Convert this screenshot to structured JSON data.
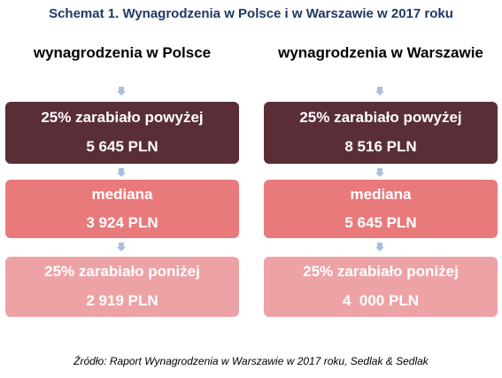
{
  "title": "Schemat 1. Wynagrodzenia w Polsce i w Warszawie w 2017 roku",
  "columns": [
    {
      "header": "wynagrodzenia w Polsce",
      "top_label": "25% zarabiało powyżej",
      "top_value": "5 645 PLN",
      "mid_label": "mediana",
      "mid_value": "3 924 PLN",
      "bot_label": "25% zarabiało poniżej",
      "bot_value": "2 919 PLN"
    },
    {
      "header": "wynagrodzenia w Warszawie",
      "top_label": "25% zarabiało powyżej",
      "top_value": "8 516 PLN",
      "mid_label": "mediana",
      "mid_value": "5 645 PLN",
      "bot_label": "25% zarabiało poniżej",
      "bot_value": "4  000 PLN"
    }
  ],
  "source": "Źródło: Raport Wynagrodzenia w Warszawie w 2017 roku, Sedlak & Sedlak",
  "colors": {
    "title": "#1f3864",
    "top_box": "#5a2e36",
    "mid_box": "#e87a7c",
    "bot_box": "#eda3a6",
    "arrow": "#a9bfe0"
  }
}
